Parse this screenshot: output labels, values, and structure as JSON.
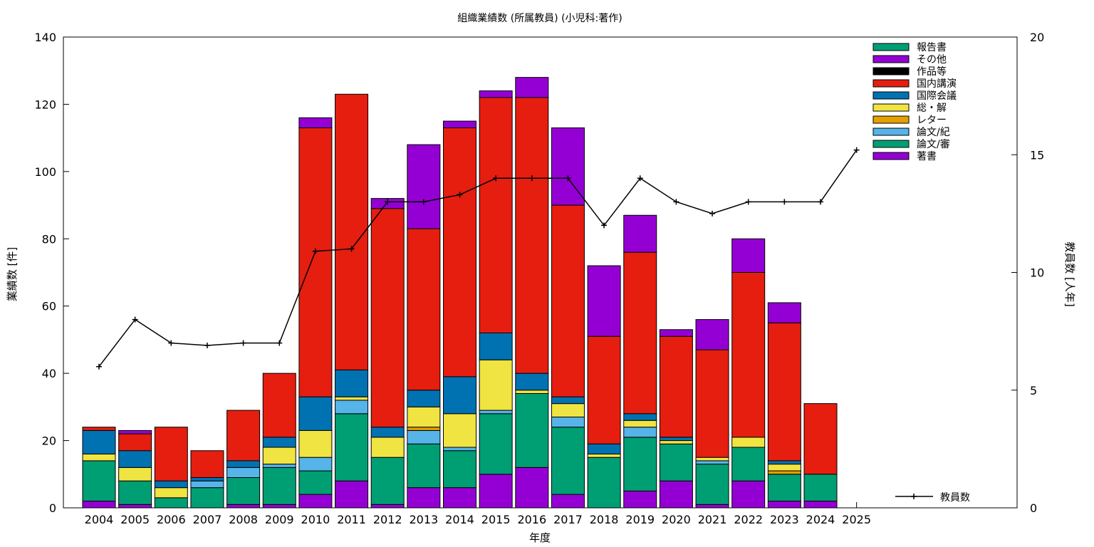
{
  "chart_data": {
    "type": "bar",
    "title": "組織業績数 (所属教員) (小児科:著作)",
    "xlabel": "年度",
    "ylabel": "業績数 [件]",
    "y2label": "教員数 [人年]",
    "ylim": [
      0,
      140
    ],
    "y2lim": [
      0,
      20
    ],
    "yticks": [
      0,
      20,
      40,
      60,
      80,
      100,
      120,
      140
    ],
    "y2ticks": [
      0,
      5,
      10,
      15,
      20
    ],
    "legend_position": "top-right",
    "categories": [
      "2004",
      "2005",
      "2006",
      "2007",
      "2008",
      "2009",
      "2010",
      "2011",
      "2012",
      "2013",
      "2014",
      "2015",
      "2016",
      "2017",
      "2018",
      "2019",
      "2020",
      "2021",
      "2022",
      "2023",
      "2024",
      "2025"
    ],
    "series": [
      {
        "name": "著書",
        "color": "#9400d3",
        "values": [
          2,
          1,
          0,
          0,
          1,
          1,
          4,
          8,
          1,
          6,
          6,
          10,
          12,
          4,
          0,
          5,
          8,
          1,
          8,
          2,
          2,
          0
        ]
      },
      {
        "name": "論文/審",
        "color": "#009e73",
        "values": [
          12,
          7,
          3,
          6,
          8,
          11,
          7,
          20,
          14,
          13,
          11,
          18,
          22,
          20,
          15,
          16,
          11,
          12,
          10,
          8,
          8,
          0
        ]
      },
      {
        "name": "論文/紀",
        "color": "#56b4e9",
        "values": [
          0,
          0,
          0,
          2,
          3,
          1,
          4,
          4,
          0,
          4,
          1,
          1,
          0,
          3,
          0,
          3,
          0,
          1,
          0,
          0,
          0,
          0
        ]
      },
      {
        "name": "レター",
        "color": "#e69f00",
        "values": [
          0,
          0,
          0,
          0,
          0,
          0,
          0,
          0,
          0,
          1,
          0,
          0,
          0,
          0,
          0,
          0,
          0,
          0,
          0,
          1,
          0,
          0
        ]
      },
      {
        "name": "総・解",
        "color": "#f0e442",
        "values": [
          2,
          4,
          3,
          0,
          0,
          5,
          8,
          1,
          6,
          6,
          10,
          15,
          1,
          4,
          1,
          2,
          1,
          1,
          3,
          2,
          0,
          0
        ]
      },
      {
        "name": "国際会議",
        "color": "#0072b2",
        "values": [
          7,
          5,
          2,
          1,
          2,
          3,
          10,
          8,
          3,
          5,
          11,
          8,
          5,
          2,
          3,
          2,
          1,
          0,
          0,
          1,
          0,
          0
        ]
      },
      {
        "name": "国内講演",
        "color": "#e51e10",
        "values": [
          1,
          5,
          16,
          8,
          15,
          19,
          80,
          82,
          65,
          48,
          74,
          70,
          82,
          57,
          32,
          48,
          30,
          32,
          49,
          41,
          21,
          0
        ]
      },
      {
        "name": "作品等",
        "color": "#000000",
        "values": [
          0,
          0,
          0,
          0,
          0,
          0,
          0,
          0,
          0,
          0,
          0,
          0,
          0,
          0,
          0,
          0,
          0,
          0,
          0,
          0,
          0,
          0
        ]
      },
      {
        "name": "その他",
        "color": "#9400d3",
        "values": [
          0,
          1,
          0,
          0,
          0,
          0,
          3,
          0,
          3,
          25,
          2,
          2,
          6,
          23,
          21,
          11,
          2,
          9,
          10,
          6,
          0,
          0
        ]
      },
      {
        "name": "報告書",
        "color": "#009e73",
        "values": [
          0,
          0,
          0,
          0,
          0,
          0,
          0,
          0,
          0,
          0,
          0,
          0,
          0,
          0,
          0,
          0,
          0,
          0,
          0,
          0,
          0,
          0
        ]
      }
    ],
    "line_series": {
      "name": "教員数",
      "color": "#000000",
      "axis": "y2",
      "values": [
        6,
        8,
        7,
        6.9,
        7,
        7,
        10.9,
        11,
        13,
        13,
        13.3,
        14,
        14,
        14,
        12,
        14,
        13,
        12.5,
        13,
        13,
        13,
        15.2
      ]
    }
  }
}
